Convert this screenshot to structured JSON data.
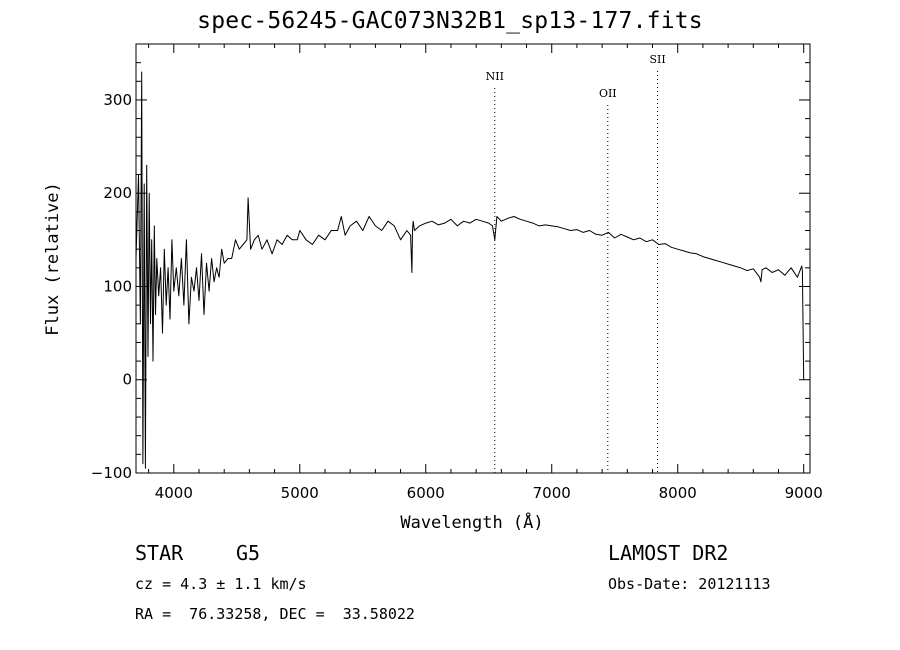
{
  "title": "spec-56245-GAC073N32B1_sp13-177.fits",
  "footer": {
    "class_label": "STAR",
    "subclass": "G5",
    "survey": "LAMOST DR2",
    "cz": "cz = 4.3 ± 1.1 km/s",
    "obs_date": "Obs-Date: 20121113",
    "coords": "RA =  76.33258, DEC =  33.58022"
  },
  "chart_data": {
    "type": "line",
    "xlabel": "Wavelength (Å)",
    "ylabel": "Flux (relative)",
    "xlim": [
      3700,
      9050
    ],
    "ylim": [
      -100,
      360
    ],
    "xticks": [
      4000,
      5000,
      6000,
      7000,
      8000,
      9000
    ],
    "yticks": [
      -100,
      0,
      100,
      200,
      300
    ],
    "grid": false,
    "lines": [
      {
        "label": "NII",
        "x": 6548
      },
      {
        "label": "OII",
        "x": 7445
      },
      {
        "label": "SII",
        "x": 7840
      }
    ],
    "series": [
      {
        "x": [
          3700,
          3720,
          3735,
          3745,
          3755,
          3765,
          3775,
          3785,
          3795,
          3805,
          3815,
          3825,
          3835,
          3845,
          3855,
          3865,
          3880,
          3895,
          3910,
          3925,
          3940,
          3955,
          3970,
          3985,
          4000,
          4020,
          4040,
          4060,
          4080,
          4100,
          4120,
          4140,
          4160,
          4180,
          4200,
          4220,
          4240,
          4260,
          4280,
          4300,
          4320,
          4340,
          4360,
          4380,
          4400,
          4430,
          4460,
          4490,
          4520,
          4550,
          4580,
          4590,
          4610,
          4640,
          4670,
          4700,
          4740,
          4780,
          4820,
          4860,
          4900,
          4940,
          4980,
          5000,
          5050,
          5100,
          5150,
          5200,
          5250,
          5300,
          5330,
          5360,
          5400,
          5450,
          5500,
          5550,
          5600,
          5650,
          5700,
          5750,
          5800,
          5850,
          5880,
          5890,
          5895,
          5900,
          5910,
          5950,
          6000,
          6050,
          6100,
          6150,
          6200,
          6250,
          6300,
          6350,
          6400,
          6450,
          6500,
          6530,
          6548,
          6565,
          6600,
          6650,
          6700,
          6750,
          6800,
          6850,
          6900,
          6950,
          7000,
          7050,
          7100,
          7150,
          7200,
          7250,
          7300,
          7350,
          7400,
          7450,
          7500,
          7550,
          7600,
          7650,
          7700,
          7750,
          7800,
          7850,
          7900,
          7950,
          8000,
          8050,
          8100,
          8150,
          8200,
          8250,
          8300,
          8350,
          8400,
          8450,
          8500,
          8550,
          8600,
          8650,
          8660,
          8670,
          8700,
          8750,
          8800,
          8850,
          8900,
          8950,
          8985,
          8990,
          9000
        ],
        "values": [
          130,
          220,
          60,
          330,
          -90,
          210,
          -95,
          230,
          25,
          200,
          60,
          150,
          20,
          165,
          70,
          130,
          90,
          120,
          50,
          140,
          80,
          120,
          65,
          150,
          95,
          120,
          90,
          130,
          80,
          150,
          60,
          110,
          95,
          120,
          85,
          135,
          70,
          125,
          95,
          130,
          105,
          120,
          110,
          140,
          125,
          130,
          130,
          150,
          140,
          145,
          150,
          195,
          140,
          150,
          155,
          140,
          150,
          135,
          150,
          145,
          155,
          150,
          150,
          160,
          150,
          145,
          155,
          150,
          160,
          160,
          175,
          155,
          165,
          170,
          160,
          175,
          165,
          160,
          170,
          165,
          150,
          160,
          155,
          115,
          160,
          170,
          160,
          165,
          168,
          170,
          166,
          168,
          172,
          165,
          170,
          168,
          172,
          170,
          168,
          165,
          150,
          175,
          170,
          173,
          175,
          172,
          170,
          168,
          165,
          166,
          165,
          164,
          162,
          160,
          161,
          158,
          160,
          156,
          155,
          158,
          152,
          156,
          153,
          150,
          152,
          148,
          150,
          145,
          146,
          142,
          140,
          138,
          136,
          135,
          132,
          130,
          128,
          126,
          124,
          122,
          120,
          117,
          119,
          110,
          105,
          118,
          120,
          115,
          118,
          112,
          120,
          110,
          122,
          116,
          0
        ]
      }
    ]
  }
}
